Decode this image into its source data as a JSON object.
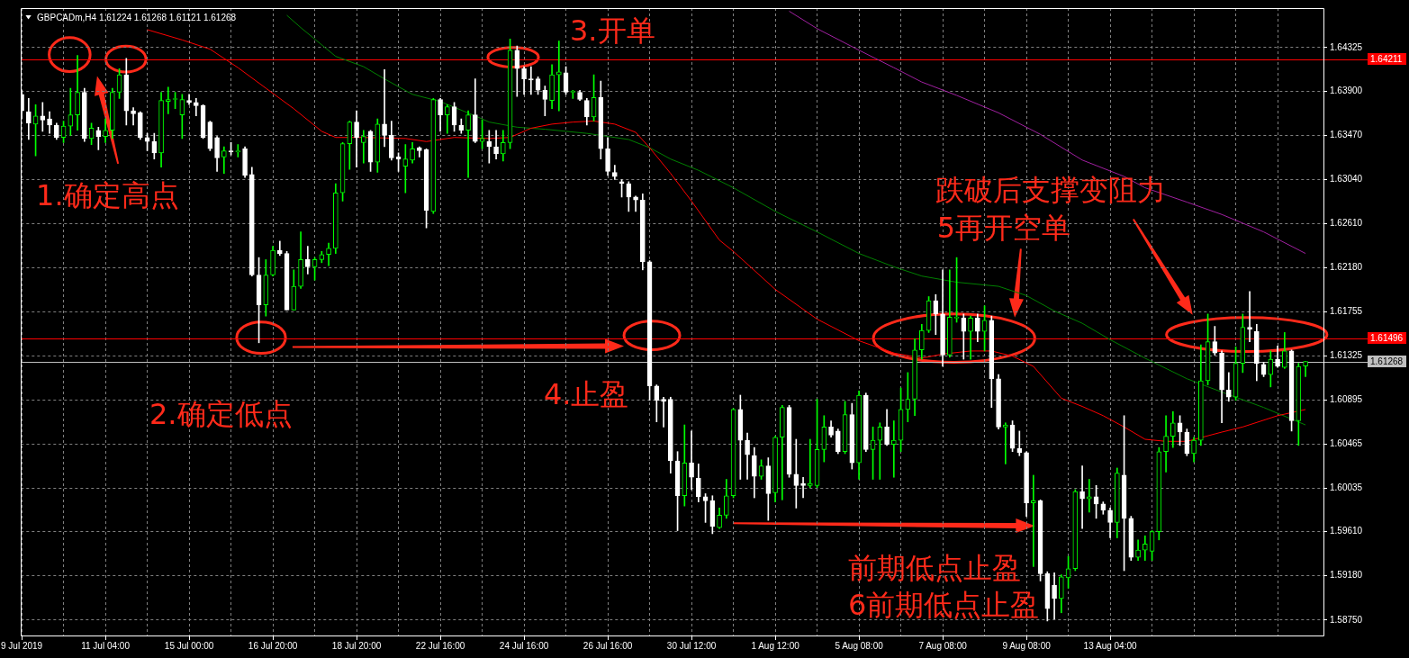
{
  "chart_data": {
    "type": "candlestick",
    "title": "GBPCADm,H4 1.61224 1.61268 1.61121 1.61268",
    "categories": [
      "9 Jul 2019",
      null,
      null,
      null,
      null,
      null,
      null,
      null,
      null,
      null,
      null,
      null,
      "11 Jul 04:00",
      null,
      null,
      null,
      null,
      null,
      null,
      null,
      null,
      null,
      null,
      null,
      "15 Jul 00:00",
      null,
      null,
      null,
      null,
      null,
      null,
      null,
      null,
      null,
      null,
      null,
      "16 Jul 20:00",
      null,
      null,
      null,
      null,
      null,
      null,
      null,
      null,
      null,
      null,
      null,
      "18 Jul 20:00",
      null,
      null,
      null,
      null,
      null,
      null,
      null,
      null,
      null,
      null,
      null,
      "22 Jul 16:00",
      null,
      null,
      null,
      null,
      null,
      null,
      null,
      null,
      null,
      null,
      null,
      "24 Jul 16:00",
      null,
      null,
      null,
      null,
      null,
      null,
      null,
      null,
      null,
      null,
      null,
      "26 Jul 16:00",
      null,
      null,
      null,
      null,
      null,
      null,
      null,
      null,
      null,
      null,
      null,
      "30 Jul 12:00",
      null,
      null,
      null,
      null,
      null,
      null,
      null,
      null,
      null,
      null,
      null,
      "1 Aug 12:00",
      null,
      null,
      null,
      null,
      null,
      null,
      null,
      null,
      null,
      null,
      null,
      "5 Aug 08:00",
      null,
      null,
      null,
      null,
      null,
      null,
      null,
      null,
      null,
      null,
      null,
      "7 Aug 08:00",
      null,
      null,
      null,
      null,
      null,
      null,
      null,
      null,
      null,
      null,
      null,
      "9 Aug 08:00",
      null,
      null,
      null,
      null,
      null,
      null,
      null,
      null,
      null,
      null,
      null,
      "13 Aug 04:00",
      null,
      null,
      null,
      null,
      null,
      null,
      null,
      null,
      null,
      null,
      null,
      null,
      null,
      null,
      null,
      null,
      null,
      null,
      null,
      null,
      null,
      null,
      null,
      null,
      null,
      null,
      null,
      null
    ],
    "ohlc": [
      [
        1.6387,
        1.6391,
        1.6363,
        1.6371
      ],
      [
        1.637,
        1.6383,
        1.6343,
        1.6359
      ],
      [
        1.6358,
        1.6377,
        1.6327,
        1.6366
      ],
      [
        1.6366,
        1.6379,
        1.6351,
        1.6362
      ],
      [
        1.6363,
        1.637,
        1.6349,
        1.6357
      ],
      [
        1.6357,
        1.6359,
        1.6343,
        1.6345
      ],
      [
        1.6345,
        1.6361,
        1.634,
        1.6356
      ],
      [
        1.6356,
        1.6393,
        1.6347,
        1.6367
      ],
      [
        1.6367,
        1.6425,
        1.6352,
        1.6389
      ],
      [
        1.6389,
        1.6393,
        1.6341,
        1.6344
      ],
      [
        1.6344,
        1.6359,
        1.6338,
        1.6354
      ],
      [
        1.6352,
        1.6355,
        1.6333,
        1.6346
      ],
      [
        1.6346,
        1.6363,
        1.634,
        1.6352
      ],
      [
        1.6352,
        1.6393,
        1.6344,
        1.6389
      ],
      [
        1.6389,
        1.6412,
        1.6383,
        1.6406
      ],
      [
        1.6406,
        1.6422,
        1.6357,
        1.6371
      ],
      [
        1.6371,
        1.6374,
        1.6357,
        1.6368
      ],
      [
        1.6369,
        1.637,
        1.6343,
        1.6345
      ],
      [
        1.6345,
        1.6349,
        1.6332,
        1.6341
      ],
      [
        1.6341,
        1.6349,
        1.6324,
        1.633
      ],
      [
        1.633,
        1.6389,
        1.6316,
        1.6381
      ],
      [
        1.638,
        1.6394,
        1.6368,
        1.6382
      ],
      [
        1.6382,
        1.6389,
        1.6373,
        1.6382
      ],
      [
        1.6367,
        1.6387,
        1.6344,
        1.6382
      ],
      [
        1.6381,
        1.6387,
        1.6377,
        1.6379
      ],
      [
        1.6379,
        1.6383,
        1.6366,
        1.6376
      ],
      [
        1.6376,
        1.6377,
        1.6344,
        1.6345
      ],
      [
        1.636,
        1.6361,
        1.6332,
        1.6334
      ],
      [
        1.6345,
        1.6346,
        1.6312,
        1.6325
      ],
      [
        1.6326,
        1.6336,
        1.631,
        1.6332
      ],
      [
        1.6332,
        1.634,
        1.6328,
        1.6331
      ],
      [
        1.6331,
        1.6338,
        1.6326,
        1.6331
      ],
      [
        1.6334,
        1.6336,
        1.6306,
        1.6308
      ],
      [
        1.6309,
        1.6316,
        1.621,
        1.6211
      ],
      [
        1.6211,
        1.6228,
        1.6145,
        1.6182
      ],
      [
        1.6182,
        1.6226,
        1.6171,
        1.6211
      ],
      [
        1.6211,
        1.6239,
        1.621,
        1.6235
      ],
      [
        1.6235,
        1.6244,
        1.623,
        1.6232
      ],
      [
        1.6232,
        1.6234,
        1.6177,
        1.6177
      ],
      [
        1.6177,
        1.6216,
        1.6177,
        1.62
      ],
      [
        1.62,
        1.6253,
        1.6198,
        1.6226
      ],
      [
        1.6226,
        1.6239,
        1.6212,
        1.6219
      ],
      [
        1.6219,
        1.6228,
        1.6206,
        1.6226
      ],
      [
        1.6226,
        1.6234,
        1.6223,
        1.6231
      ],
      [
        1.6231,
        1.6242,
        1.622,
        1.6237
      ],
      [
        1.6237,
        1.63,
        1.6232,
        1.6291
      ],
      [
        1.6291,
        1.634,
        1.6283,
        1.6339
      ],
      [
        1.6339,
        1.6361,
        1.6314,
        1.636
      ],
      [
        1.636,
        1.6371,
        1.6316,
        1.6345
      ],
      [
        1.634,
        1.6352,
        1.632,
        1.6346
      ],
      [
        1.6351,
        1.6352,
        1.6312,
        1.6321
      ],
      [
        1.6321,
        1.6363,
        1.6311,
        1.6358
      ],
      [
        1.6358,
        1.6411,
        1.6336,
        1.6347
      ],
      [
        1.6347,
        1.6361,
        1.6323,
        1.6325
      ],
      [
        1.6326,
        1.633,
        1.6312,
        1.6324
      ],
      [
        1.6317,
        1.6338,
        1.6291,
        1.6324
      ],
      [
        1.6323,
        1.634,
        1.632,
        1.6334
      ],
      [
        1.6335,
        1.6336,
        1.6326,
        1.6332
      ],
      [
        1.6333,
        1.6334,
        1.6257,
        1.6274
      ],
      [
        1.6273,
        1.6383,
        1.6271,
        1.6382
      ],
      [
        1.6382,
        1.6383,
        1.6351,
        1.6367
      ],
      [
        1.6367,
        1.6377,
        1.6349,
        1.6375
      ],
      [
        1.6375,
        1.6379,
        1.6351,
        1.6357
      ],
      [
        1.6357,
        1.6363,
        1.6349,
        1.6352
      ],
      [
        1.6352,
        1.6371,
        1.6306,
        1.6367
      ],
      [
        1.6367,
        1.6402,
        1.634,
        1.6341
      ],
      [
        1.6341,
        1.6362,
        1.6334,
        1.6344
      ],
      [
        1.6341,
        1.6352,
        1.632,
        1.6336
      ],
      [
        1.6336,
        1.6352,
        1.6324,
        1.6329
      ],
      [
        1.6329,
        1.6352,
        1.6322,
        1.634
      ],
      [
        1.634,
        1.6441,
        1.6334,
        1.643
      ],
      [
        1.643,
        1.6434,
        1.6385,
        1.6412
      ],
      [
        1.6412,
        1.6414,
        1.6387,
        1.6402
      ],
      [
        1.6402,
        1.6414,
        1.6387,
        1.6401
      ],
      [
        1.6402,
        1.6404,
        1.6387,
        1.6391
      ],
      [
        1.6391,
        1.6395,
        1.6366,
        1.6382
      ],
      [
        1.6381,
        1.6416,
        1.6373,
        1.6406
      ],
      [
        1.6406,
        1.6439,
        1.6371,
        1.6409
      ],
      [
        1.6408,
        1.6414,
        1.6387,
        1.6389
      ],
      [
        1.6389,
        1.6391,
        1.6383,
        1.639
      ],
      [
        1.6389,
        1.6391,
        1.6381,
        1.6382
      ],
      [
        1.6381,
        1.6383,
        1.6357,
        1.6365
      ],
      [
        1.6365,
        1.6406,
        1.6361,
        1.6384
      ],
      [
        1.6384,
        1.64,
        1.6324,
        1.6334
      ],
      [
        1.6334,
        1.6345,
        1.6308,
        1.6312
      ],
      [
        1.6311,
        1.6318,
        1.6304,
        1.6307
      ],
      [
        1.6302,
        1.6304,
        1.6287,
        1.63
      ],
      [
        1.63,
        1.6302,
        1.6273,
        1.6287
      ],
      [
        1.6287,
        1.6288,
        1.6273,
        1.6284
      ],
      [
        1.6284,
        1.629,
        1.6216,
        1.6224
      ],
      [
        1.6224,
        1.6225,
        1.6089,
        1.6103
      ],
      [
        1.6103,
        1.6104,
        1.6068,
        1.6089
      ],
      [
        1.609,
        1.6092,
        1.6063,
        1.6088
      ],
      [
        1.609,
        1.6092,
        1.6018,
        1.603
      ],
      [
        1.603,
        1.6039,
        1.5962,
        1.5996
      ],
      [
        1.5996,
        1.6065,
        1.5986,
        1.6028
      ],
      [
        1.6028,
        1.6059,
        1.6002,
        1.6014
      ],
      [
        1.6013,
        1.6027,
        1.599,
        1.5995
      ],
      [
        1.5995,
        1.5998,
        1.597,
        1.5991
      ],
      [
        1.5991,
        1.5996,
        1.5959,
        1.5966
      ],
      [
        1.5965,
        1.5984,
        1.5964,
        1.5977
      ],
      [
        1.5977,
        1.6012,
        1.5974,
        1.5996
      ],
      [
        1.5996,
        1.6081,
        1.5994,
        1.608
      ],
      [
        1.608,
        1.6094,
        1.6012,
        1.605
      ],
      [
        1.605,
        1.6057,
        1.6012,
        1.6036
      ],
      [
        1.6035,
        1.6043,
        1.5994,
        1.6015
      ],
      [
        1.6015,
        1.6031,
        1.6012,
        1.6025
      ],
      [
        1.6025,
        1.6033,
        1.5972,
        1.5998
      ],
      [
        1.5999,
        1.6054,
        1.599,
        1.6053
      ],
      [
        1.6053,
        1.6084,
        1.5992,
        1.6082
      ],
      [
        1.6082,
        1.6084,
        1.6014,
        1.6017
      ],
      [
        1.6017,
        1.6051,
        1.5984,
        1.6006
      ],
      [
        1.6008,
        1.6014,
        1.5994,
        1.6006
      ],
      [
        1.6006,
        1.6051,
        1.6004,
        1.6008
      ],
      [
        1.6006,
        1.609,
        1.6004,
        1.6041
      ],
      [
        1.6041,
        1.6074,
        1.6029,
        1.6063
      ],
      [
        1.6063,
        1.6069,
        1.6053,
        1.6055
      ],
      [
        1.6059,
        1.6061,
        1.6037,
        1.6039
      ],
      [
        1.6039,
        1.6088,
        1.6037,
        1.6075
      ],
      [
        1.6075,
        1.6086,
        1.6022,
        1.6028
      ],
      [
        1.6028,
        1.6098,
        1.6012,
        1.6094
      ],
      [
        1.6094,
        1.6096,
        1.6039,
        1.6041
      ],
      [
        1.6041,
        1.6063,
        1.6012,
        1.605
      ],
      [
        1.605,
        1.6067,
        1.6012,
        1.6063
      ],
      [
        1.6063,
        1.608,
        1.6045,
        1.6046
      ],
      [
        1.6046,
        1.6069,
        1.6014,
        1.605
      ],
      [
        1.605,
        1.6101,
        1.6039,
        1.608
      ],
      [
        1.608,
        1.6116,
        1.6068,
        1.609
      ],
      [
        1.609,
        1.6149,
        1.6074,
        1.6138
      ],
      [
        1.6138,
        1.6163,
        1.6129,
        1.6157
      ],
      [
        1.6157,
        1.619,
        1.6155,
        1.6186
      ],
      [
        1.6186,
        1.6192,
        1.6153,
        1.6173
      ],
      [
        1.6173,
        1.6216,
        1.6122,
        1.6133
      ],
      [
        1.6133,
        1.6216,
        1.6131,
        1.617
      ],
      [
        1.6169,
        1.6228,
        1.6165,
        1.6169
      ],
      [
        1.6169,
        1.6173,
        1.6129,
        1.6156
      ],
      [
        1.6156,
        1.6171,
        1.6129,
        1.6169
      ],
      [
        1.6169,
        1.6173,
        1.6146,
        1.6156
      ],
      [
        1.6156,
        1.6181,
        1.6137,
        1.6167
      ],
      [
        1.6167,
        1.6171,
        1.6082,
        1.611
      ],
      [
        1.611,
        1.6114,
        1.6061,
        1.6063
      ],
      [
        1.6063,
        1.6067,
        1.6027,
        1.6065
      ],
      [
        1.6065,
        1.6069,
        1.6039,
        1.6042
      ],
      [
        1.6042,
        1.6059,
        1.6035,
        1.6038
      ],
      [
        1.6038,
        1.6039,
        1.5976,
        1.5989
      ],
      [
        1.5989,
        1.6016,
        1.5927,
        1.5991
      ],
      [
        1.5991,
        1.5992,
        1.5913,
        1.592
      ],
      [
        1.592,
        1.5922,
        1.5874,
        1.5886
      ],
      [
        1.5909,
        1.5921,
        1.5876,
        1.5896
      ],
      [
        1.5896,
        1.5919,
        1.5882,
        1.5917
      ],
      [
        1.5916,
        1.5937,
        1.5906,
        1.5925
      ],
      [
        1.5925,
        1.6002,
        1.5923,
        1.6
      ],
      [
        1.6,
        1.6025,
        1.5964,
        1.5993
      ],
      [
        1.5993,
        1.6012,
        1.598,
        1.5995
      ],
      [
        1.5995,
        1.6006,
        1.5974,
        1.5988
      ],
      [
        1.5988,
        1.599,
        1.5978,
        1.5982
      ],
      [
        1.5982,
        1.5984,
        1.5955,
        1.597
      ],
      [
        1.597,
        1.6023,
        1.5955,
        1.6018
      ],
      [
        1.6016,
        1.6074,
        1.5923,
        1.5974
      ],
      [
        1.5974,
        1.5976,
        1.5933,
        1.5936
      ],
      [
        1.5936,
        1.5953,
        1.5933,
        1.5943
      ],
      [
        1.5943,
        1.5957,
        1.5933,
        1.5949
      ],
      [
        1.5942,
        1.5962,
        1.5933,
        1.5961
      ],
      [
        1.5961,
        1.6043,
        1.5953,
        1.6039
      ],
      [
        1.6039,
        1.6074,
        1.6019,
        1.6054
      ],
      [
        1.6054,
        1.6078,
        1.6043,
        1.6067
      ],
      [
        1.6067,
        1.6074,
        1.6045,
        1.6058
      ],
      [
        1.6058,
        1.6061,
        1.6035,
        1.6037
      ],
      [
        1.6037,
        1.6053,
        1.6029,
        1.605
      ],
      [
        1.605,
        1.6143,
        1.6045,
        1.6108
      ],
      [
        1.6108,
        1.6173,
        1.6104,
        1.6146
      ],
      [
        1.6146,
        1.6161,
        1.6133,
        1.6135
      ],
      [
        1.6135,
        1.6137,
        1.6067,
        1.6099
      ],
      [
        1.6099,
        1.6116,
        1.6088,
        1.6092
      ],
      [
        1.6092,
        1.6141,
        1.6089,
        1.6125
      ],
      [
        1.6125,
        1.6173,
        1.6116,
        1.616
      ],
      [
        1.616,
        1.6195,
        1.6146,
        1.6158
      ],
      [
        1.6156,
        1.6163,
        1.6108,
        1.6125
      ],
      [
        1.6124,
        1.6126,
        1.6112,
        1.6114
      ],
      [
        1.6114,
        1.6137,
        1.6102,
        1.6129
      ],
      [
        1.6129,
        1.6142,
        1.6121,
        1.6122
      ],
      [
        1.6121,
        1.6155,
        1.612,
        1.6137
      ],
      [
        1.6137,
        1.6138,
        1.6059,
        1.6069
      ],
      [
        1.6069,
        1.6125,
        1.6045,
        1.6122
      ],
      [
        1.61224,
        1.61268,
        1.61121,
        1.61268
      ]
    ],
    "colors": [
      "#ffffff",
      "#ffffff",
      "#00ff00",
      "#ffffff",
      "#ffffff",
      "#ffffff",
      "#00ff00",
      "#00ff00",
      "#00ff00",
      "#ffffff",
      "#00ff00",
      "#ffffff",
      "#00ff00",
      "#00ff00",
      "#00ff00",
      "#ffffff",
      "#ffffff",
      "#ffffff",
      "#ffffff",
      "#ffffff",
      "#00ff00",
      "#00ff00",
      "#00ff00",
      "#00ff00",
      "#ffffff",
      "#ffffff",
      "#ffffff",
      "#ffffff",
      "#ffffff",
      "#00ff00",
      "#ffffff",
      "#00ff00",
      "#ffffff",
      "#ffffff",
      "#ffffff",
      "#00ff00",
      "#00ff00",
      "#ffffff",
      "#ffffff",
      "#00ff00",
      "#00ff00",
      "#ffffff",
      "#00ff00",
      "#00ff00",
      "#00ff00",
      "#00ff00",
      "#00ff00",
      "#00ff00",
      "#ffffff",
      "#00ff00",
      "#ffffff",
      "#00ff00",
      "#ffffff",
      "#ffffff",
      "#ffffff",
      "#00ff00",
      "#00ff00",
      "#ffffff",
      "#ffffff",
      "#00ff00",
      "#ffffff",
      "#00ff00",
      "#ffffff",
      "#ffffff",
      "#00ff00",
      "#ffffff",
      "#00ff00",
      "#ffffff",
      "#ffffff",
      "#00ff00",
      "#00ff00",
      "#ffffff",
      "#ffffff",
      "#ffffff",
      "#ffffff",
      "#ffffff",
      "#00ff00",
      "#00ff00",
      "#ffffff",
      "#00ff00",
      "#ffffff",
      "#ffffff",
      "#00ff00",
      "#ffffff",
      "#ffffff",
      "#ffffff",
      "#ffffff",
      "#ffffff",
      "#ffffff",
      "#ffffff",
      "#ffffff",
      "#ffffff",
      "#ffffff",
      "#ffffff",
      "#ffffff",
      "#00ff00",
      "#ffffff",
      "#ffffff",
      "#ffffff",
      "#ffffff",
      "#00ff00",
      "#00ff00",
      "#00ff00",
      "#ffffff",
      "#ffffff",
      "#ffffff",
      "#00ff00",
      "#ffffff",
      "#00ff00",
      "#00ff00",
      "#ffffff",
      "#ffffff",
      "#ffffff",
      "#00ff00",
      "#00ff00",
      "#00ff00",
      "#ffffff",
      "#ffffff",
      "#00ff00",
      "#ffffff",
      "#00ff00",
      "#ffffff",
      "#00ff00",
      "#00ff00",
      "#ffffff",
      "#00ff00",
      "#00ff00",
      "#00ff00",
      "#00ff00",
      "#00ff00",
      "#00ff00",
      "#ffffff",
      "#ffffff",
      "#00ff00",
      "#00ff00",
      "#ffffff",
      "#00ff00",
      "#ffffff",
      "#00ff00",
      "#ffffff",
      "#ffffff",
      "#00ff00",
      "#ffffff",
      "#ffffff",
      "#ffffff",
      "#00ff00",
      "#ffffff",
      "#ffffff",
      "#ffffff",
      "#00ff00",
      "#00ff00",
      "#00ff00",
      "#ffffff",
      "#00ff00",
      "#ffffff",
      "#ffffff",
      "#ffffff",
      "#00ff00",
      "#ffffff",
      "#ffffff",
      "#00ff00",
      "#00ff00",
      "#00ff00",
      "#00ff00",
      "#00ff00",
      "#00ff00",
      "#ffffff",
      "#ffffff",
      "#00ff00",
      "#00ff00",
      "#00ff00",
      "#ffffff",
      "#ffffff",
      "#ffffff",
      "#00ff00",
      "#00ff00",
      "#ffffff",
      "#ffffff",
      "#ffffff",
      "#00ff00",
      "#ffffff",
      "#00ff00",
      "#ffffff",
      "#00ff00",
      "#00ff00"
    ],
    "series": [
      {
        "type": "line",
        "color": "#ff0000",
        "values": [
          null,
          null,
          null,
          null,
          null,
          null,
          null,
          null,
          null,
          null,
          null,
          null,
          null,
          null,
          null,
          null,
          null,
          null,
          1.645,
          null,
          null,
          null,
          null,
          1.644,
          null,
          null,
          null,
          1.6431,
          null,
          null,
          null,
          1.6413,
          null,
          null,
          null,
          1.6393,
          null,
          null,
          null,
          1.6373,
          null,
          null,
          null,
          1.6351,
          null,
          1.6345,
          null,
          null,
          null,
          1.6345,
          null,
          null,
          null,
          null,
          null,
          1.6344,
          null,
          null,
          1.6341,
          null,
          null,
          null,
          1.6345,
          null,
          null,
          null,
          null,
          1.6344,
          null,
          null,
          1.6345,
          null,
          null,
          1.6354,
          null,
          null,
          1.6358,
          null,
          null,
          1.636,
          null,
          null,
          1.6361,
          null,
          null,
          1.6358,
          null,
          null,
          1.635,
          null,
          1.6335,
          null,
          null,
          1.631,
          null,
          null,
          1.6283,
          null,
          null,
          null,
          1.6245,
          null,
          1.6234,
          null,
          null,
          null,
          null,
          null,
          1.6197,
          null,
          null,
          null,
          null,
          null,
          1.6168,
          null,
          null,
          null,
          null,
          null,
          1.6147,
          null,
          null,
          null,
          null,
          1.6135,
          null,
          null,
          null,
          1.613,
          null,
          null,
          1.6134,
          null,
          null,
          null,
          1.6137,
          null,
          null,
          1.6137,
          null,
          null,
          1.6132,
          null,
          null,
          1.6122,
          null,
          null,
          null,
          1.6091,
          null,
          null,
          1.6083,
          null,
          null,
          1.6074,
          null,
          null,
          1.6063,
          null,
          null,
          1.6051,
          null,
          null,
          1.6049,
          null,
          null,
          1.6049,
          null,
          null,
          null,
          null,
          1.6058,
          null,
          null,
          1.6063,
          null,
          null,
          null,
          null,
          1.6074,
          null,
          null,
          null,
          1.608
        ]
      },
      {
        "type": "line",
        "color": "#008000",
        "values": [
          null,
          null,
          null,
          null,
          null,
          null,
          null,
          null,
          null,
          null,
          null,
          null,
          null,
          null,
          null,
          null,
          null,
          null,
          null,
          null,
          null,
          null,
          null,
          null,
          null,
          null,
          null,
          null,
          null,
          null,
          null,
          null,
          null,
          null,
          null,
          null,
          null,
          null,
          1.6464,
          null,
          1.6452,
          null,
          null,
          null,
          null,
          1.6424,
          null,
          null,
          null,
          1.6414,
          null,
          null,
          1.6402,
          null,
          null,
          null,
          1.6387,
          null,
          null,
          null,
          1.638,
          null,
          null,
          null,
          null,
          1.6366,
          null,
          1.636,
          null,
          null,
          null,
          1.6355,
          null,
          null,
          null,
          1.6353,
          null,
          null,
          null,
          null,
          null,
          1.6349,
          null,
          null,
          null,
          null,
          null,
          1.6343,
          null,
          null,
          1.6335,
          null,
          null,
          1.6324,
          null,
          null,
          null,
          1.6313,
          null,
          null,
          null,
          null,
          1.6296,
          null,
          null,
          null,
          null,
          null,
          1.6273,
          null,
          null,
          null,
          null,
          null,
          1.6253,
          null,
          null,
          null,
          null,
          null,
          1.6232,
          null,
          null,
          null,
          null,
          1.6219,
          null,
          null,
          null,
          1.621,
          null,
          null,
          null,
          null,
          1.6204,
          null,
          null,
          null,
          null,
          null,
          1.62,
          null,
          null,
          null,
          1.6191,
          null,
          null,
          null,
          1.6176,
          null,
          null,
          null,
          1.6164,
          null,
          null,
          null,
          1.6148,
          null,
          null,
          null,
          null,
          1.613,
          null,
          null,
          null,
          null,
          null,
          1.611,
          null,
          null,
          null,
          null,
          1.6097,
          null,
          null,
          null,
          null,
          null,
          1.6082,
          null,
          null,
          null,
          null,
          null,
          1.6065
        ]
      },
      {
        "type": "line",
        "color": "#a020a0",
        "values": [
          null,
          null,
          null,
          null,
          null,
          null,
          null,
          null,
          null,
          null,
          null,
          null,
          null,
          null,
          null,
          null,
          null,
          null,
          null,
          null,
          null,
          null,
          null,
          null,
          null,
          null,
          null,
          null,
          null,
          null,
          null,
          null,
          null,
          null,
          null,
          null,
          null,
          null,
          null,
          null,
          null,
          null,
          null,
          null,
          null,
          null,
          null,
          null,
          null,
          null,
          null,
          null,
          null,
          null,
          null,
          null,
          null,
          null,
          null,
          null,
          null,
          null,
          null,
          null,
          null,
          null,
          null,
          null,
          null,
          null,
          null,
          null,
          null,
          null,
          null,
          null,
          null,
          null,
          null,
          null,
          null,
          null,
          null,
          null,
          null,
          null,
          null,
          null,
          null,
          null,
          null,
          null,
          null,
          null,
          null,
          null,
          null,
          null,
          null,
          null,
          null,
          null,
          null,
          null,
          null,
          null,
          null,
          null,
          null,
          null,
          1.6468,
          null,
          null,
          null,
          1.6451,
          null,
          null,
          null,
          null,
          null,
          1.643,
          null,
          null,
          null,
          null,
          1.6413,
          null,
          null,
          null,
          1.6399,
          null,
          null,
          null,
          null,
          1.6386,
          null,
          null,
          null,
          null,
          null,
          1.6369,
          null,
          null,
          null,
          null,
          null,
          1.6348,
          null,
          null,
          null,
          null,
          null,
          1.6323,
          null,
          null,
          null,
          null,
          null,
          1.6307,
          null,
          null,
          1.6296,
          null,
          null,
          null,
          null,
          null,
          1.6282,
          null,
          null,
          null,
          null,
          1.627,
          null,
          null,
          null,
          null,
          null,
          1.6253,
          null,
          null,
          null,
          null,
          null,
          1.6232
        ]
      }
    ],
    "ylim": [
      1.5859,
      1.6471
    ],
    "yticks": [
      1.64325,
      {
        "value": 1.639,
        "label": "1.63900"
      },
      {
        "value": 1.6347,
        "label": "1.63470"
      },
      {
        "value": 1.6304,
        "label": "1.63040"
      },
      {
        "value": 1.6261,
        "label": "1.62610"
      },
      {
        "value": 1.6218,
        "label": "1.62180"
      },
      1.61755,
      1.61325,
      1.60895,
      1.60465,
      1.60035,
      {
        "value": 1.5961,
        "label": "1.59610"
      },
      {
        "value": 1.5918,
        "label": "1.59180"
      },
      {
        "value": 1.5875,
        "label": "1.58750"
      }
    ],
    "grid": true,
    "ref_lines": [
      {
        "axis": "y",
        "value": 1.64211,
        "label": "1.64211",
        "color": "#ff0000"
      },
      {
        "axis": "y",
        "value": 1.61496,
        "label": "1.61496",
        "color": "#ff0000"
      },
      {
        "axis": "y",
        "value": 1.61268,
        "label": "1.61268",
        "color": "#c0c0c0"
      }
    ],
    "annotations": [
      "1.确定高点",
      "2.确定低点",
      "3.开单",
      "4.止盈",
      "跌破后支撑变阻力",
      "5再开空单",
      "前期低点止盈",
      "6前期低点止盈"
    ]
  }
}
